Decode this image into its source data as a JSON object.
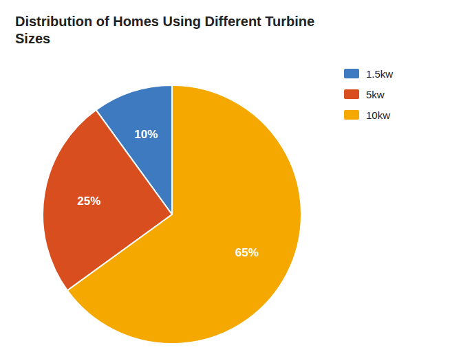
{
  "chart_data": {
    "type": "pie",
    "title": "Distribution of Homes Using Different Turbine\nSizes",
    "categories": [
      "1.5kw",
      "5kw",
      "10kw"
    ],
    "values": [
      10,
      25,
      65
    ],
    "value_labels": [
      "10%",
      "25%",
      "65%"
    ],
    "colors": [
      "#3d7abf",
      "#d94e1f",
      "#f5a800"
    ],
    "data_labels": true,
    "legend": "upper-right"
  }
}
